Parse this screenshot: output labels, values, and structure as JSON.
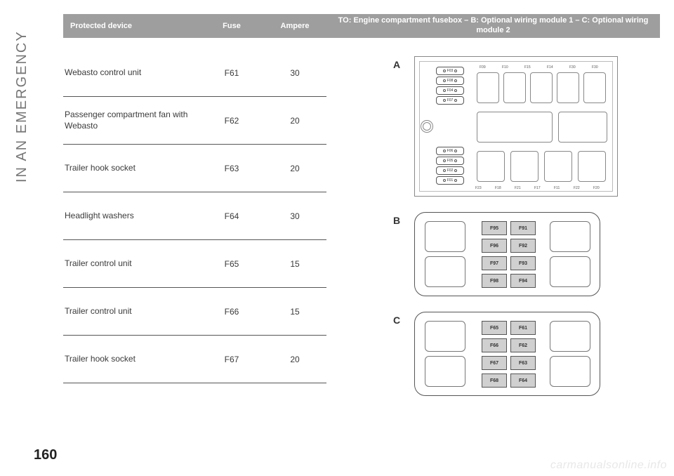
{
  "sideLabel": "IN AN EMERGENCY",
  "pageNumber": "160",
  "header": {
    "c1": "Protected device",
    "c2": "Fuse",
    "c3": "Ampere",
    "c4": "TO: Engine compartment fusebox – B: Optional wiring module 1 – C: Optional wiring module 2"
  },
  "rows": [
    {
      "device": "Webasto control unit",
      "fuse": "F61",
      "amp": "30"
    },
    {
      "device": "Passenger compartment fan with Webasto",
      "fuse": "F62",
      "amp": "20"
    },
    {
      "device": "Trailer hook socket",
      "fuse": "F63",
      "amp": "20"
    },
    {
      "device": "Headlight washers",
      "fuse": "F64",
      "amp": "30"
    },
    {
      "device": "Trailer control unit",
      "fuse": "F65",
      "amp": "15"
    },
    {
      "device": "Trailer control unit",
      "fuse": "F66",
      "amp": "15"
    },
    {
      "device": "Trailer hook socket",
      "fuse": "F67",
      "amp": "20"
    }
  ],
  "diagA": {
    "label": "A",
    "leftFuses": [
      "F03",
      "F08",
      "F04",
      "F07"
    ],
    "leftFuses2": [
      "F06",
      "F05",
      "F02",
      "F01"
    ],
    "topLabels": [
      "F09",
      "F10",
      "F15",
      "F14",
      "F30",
      "F30"
    ],
    "bottomLabels": [
      "F23",
      "F18",
      "F21",
      "F17",
      "F11",
      "F22",
      "F20"
    ]
  },
  "diagB": {
    "label": "B",
    "fuses": [
      "F95",
      "F91",
      "F96",
      "F92",
      "F97",
      "F93",
      "F98",
      "F94"
    ]
  },
  "diagC": {
    "label": "C",
    "fuses": [
      "F65",
      "F61",
      "F66",
      "F62",
      "F67",
      "F63",
      "F68",
      "F64"
    ]
  },
  "watermark": "carmanualsonline.info"
}
